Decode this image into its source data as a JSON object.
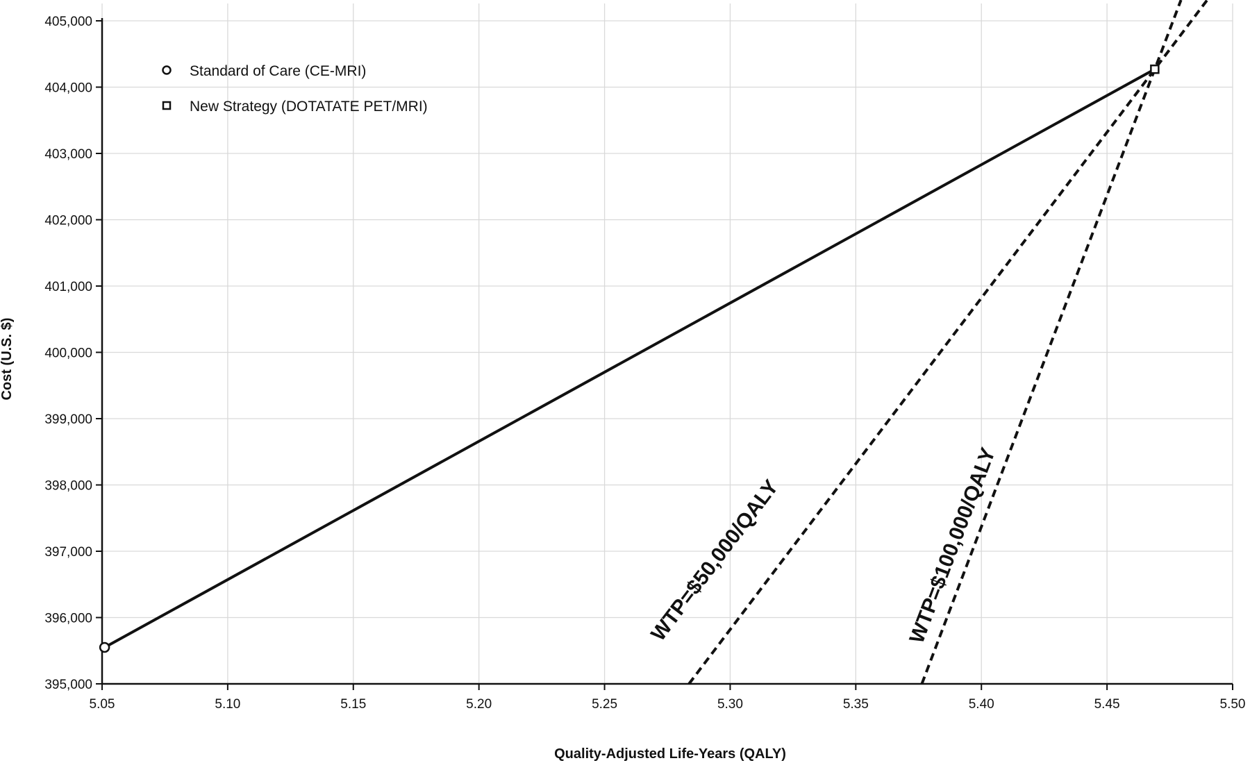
{
  "chart_data": {
    "type": "scatter",
    "title": "",
    "xlabel": "Quality-Adjusted Life-Years (QALY)",
    "ylabel": "Cost (U.S. $)",
    "xlim": [
      5.05,
      5.5
    ],
    "ylim": [
      395000,
      405000
    ],
    "x_ticks": [
      "5.05",
      "5.10",
      "5.15",
      "5.20",
      "5.25",
      "5.30",
      "5.35",
      "5.40",
      "5.45",
      "5.50"
    ],
    "y_ticks": [
      "395,000",
      "396,000",
      "397,000",
      "398,000",
      "399,000",
      "400,000",
      "401,000",
      "402,000",
      "403,000",
      "404,000",
      "405,000"
    ],
    "grid": true,
    "legend_position": "top-left",
    "series": [
      {
        "name": "Standard of Care (CE-MRI)",
        "marker": "circle",
        "x": 5.051,
        "y": 395550
      },
      {
        "name": "New Strategy (DOTATATE PET/MRI)",
        "marker": "square",
        "x": 5.469,
        "y": 404270
      }
    ],
    "frontier": {
      "from": [
        5.051,
        395550
      ],
      "to": [
        5.469,
        404270
      ]
    },
    "wtp_lines": [
      {
        "label": "WTP=$50,000/QALY",
        "slope": 50000
      },
      {
        "label": "WTP=$100,000/QALY",
        "slope": 100000
      }
    ]
  },
  "colors": {
    "line": "#111111",
    "grid": "#d9d9d9",
    "background": "#ffffff"
  }
}
